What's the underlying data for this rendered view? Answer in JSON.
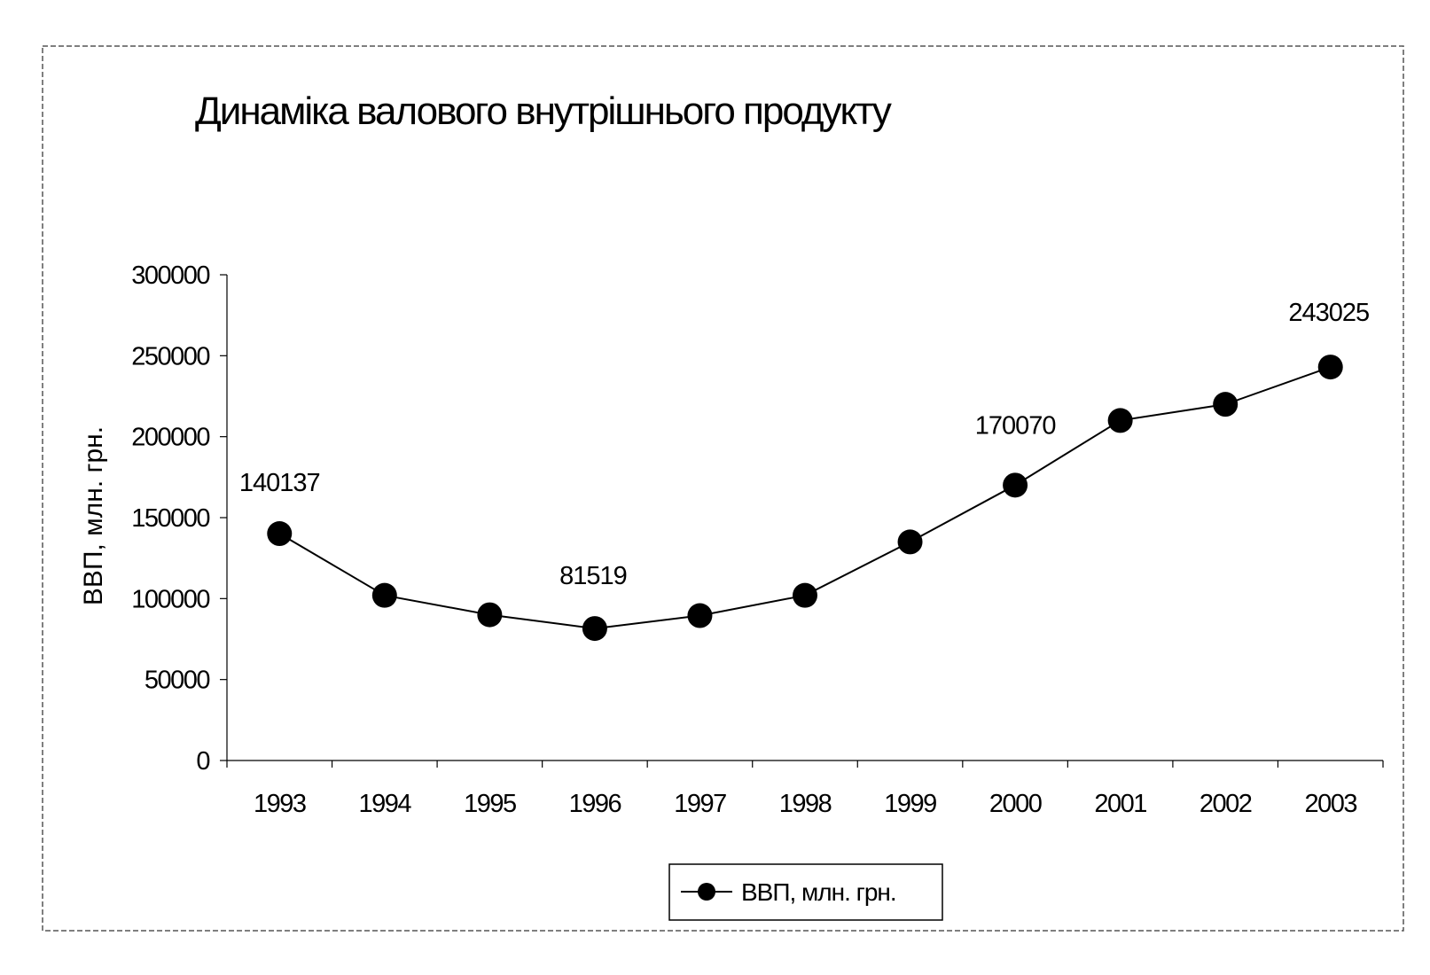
{
  "chart_data": {
    "type": "line",
    "title": "Динаміка валового внутрішнього продукту",
    "xlabel": "",
    "ylabel": "ВВП, млн. грн.",
    "categories": [
      "1993",
      "1994",
      "1995",
      "1996",
      "1997",
      "1998",
      "1999",
      "2000",
      "2001",
      "2002",
      "2003"
    ],
    "series": [
      {
        "name": "ВВП, млн. грн.",
        "values": [
          140137,
          102000,
          90000,
          81519,
          89500,
          102000,
          135000,
          170070,
          210000,
          220000,
          243025
        ]
      }
    ],
    "data_labels": [
      {
        "category": "1993",
        "text": "140137"
      },
      {
        "category": "1996",
        "text": "81519"
      },
      {
        "category": "2000",
        "text": "170070"
      },
      {
        "category": "2003",
        "text": "243025"
      }
    ],
    "yticks": [
      "0",
      "50000",
      "100000",
      "150000",
      "200000",
      "250000",
      "300000"
    ],
    "ylim": [
      0,
      300000
    ],
    "grid": false,
    "legend_position": "bottom",
    "colors": {
      "line": "#000000",
      "marker": "#000000",
      "background": "#ffffff"
    }
  }
}
